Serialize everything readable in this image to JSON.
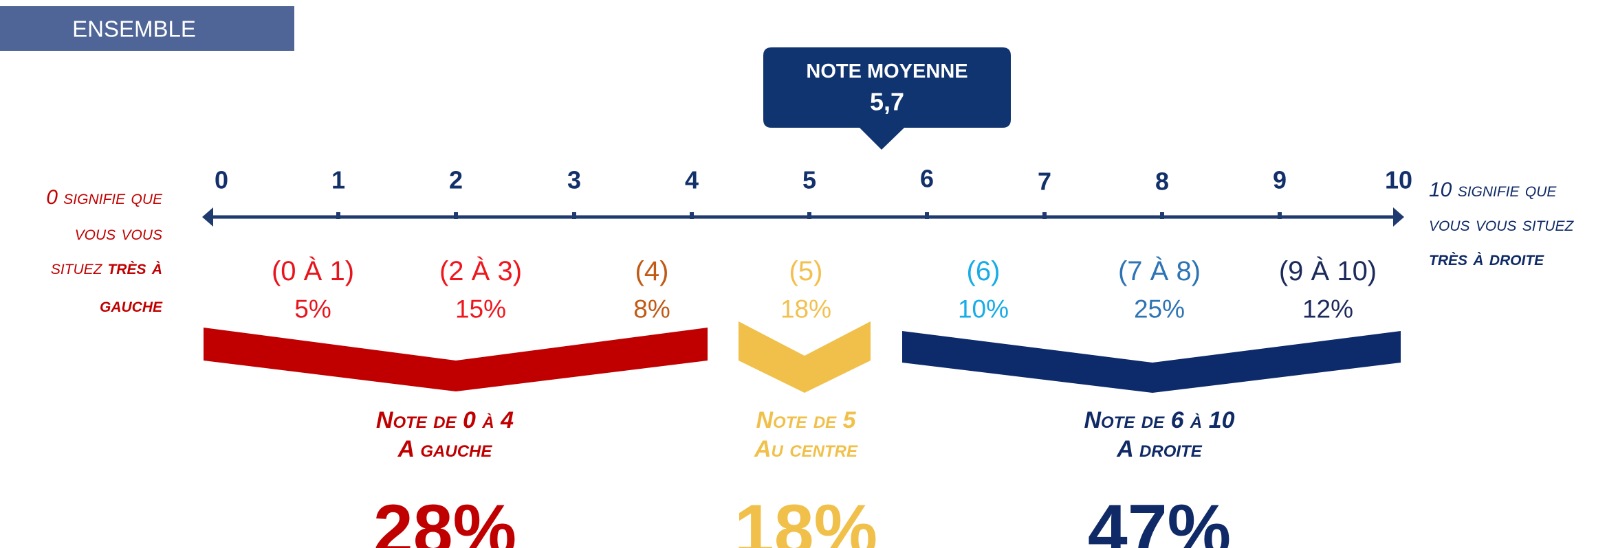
{
  "header": {
    "title": "ENSEMBLE"
  },
  "average": {
    "label": "NOTE MOYENNE",
    "value": "5,7"
  },
  "scale": {
    "ticks": [
      "0",
      "1",
      "2",
      "3",
      "4",
      "5",
      "6",
      "7",
      "8",
      "9",
      "10"
    ],
    "left_note": {
      "text": [
        "0 signifie que",
        "vous vous",
        "situez"
      ],
      "emphasis": [
        "très à",
        "gauche"
      ]
    },
    "right_note": {
      "text": [
        "10 signifie que",
        "vous vous situez"
      ],
      "emphasis": [
        "très à droite"
      ]
    }
  },
  "groups": [
    {
      "range": "(0 À 1)",
      "share": "5%",
      "color": "#e8141c"
    },
    {
      "range": "(2 À 3)",
      "share": "15%",
      "color": "#f0161e"
    },
    {
      "range": "(4)",
      "share": "8%",
      "color": "#c05a14"
    },
    {
      "range": "(5)",
      "share": "18%",
      "color": "#f2c04e"
    },
    {
      "range": "(6)",
      "share": "10%",
      "color": "#16ace6"
    },
    {
      "range": "(7 À 8)",
      "share": "25%",
      "color": "#2e74b5"
    },
    {
      "range": "(9 À 10)",
      "share": "12%",
      "color": "#1c2a5c"
    }
  ],
  "summary": [
    {
      "title": "Note de 0 à 4",
      "subtitle": "A gauche",
      "share": "28%",
      "color": "#c00000"
    },
    {
      "title": "Note de 5",
      "subtitle": "Au centre",
      "share": "18%",
      "color": "#f0c04a"
    },
    {
      "title": "Note de 6 à 10",
      "subtitle": "A droite",
      "share": "47%",
      "color": "#0f2a66"
    }
  ]
}
